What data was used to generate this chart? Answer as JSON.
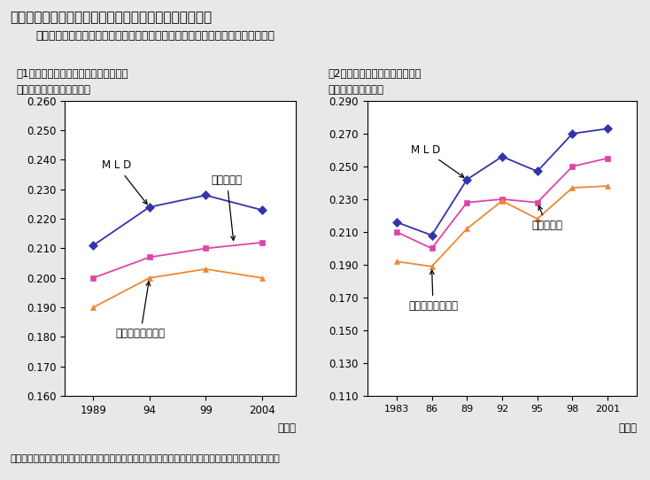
{
  "title": "第３－３－４図　各種指標による所得の各種不平等指数",
  "subtitle": "ジニ係数以外の不平等指数でみても、長期的には所得格差は統計上緩やかに拡大",
  "panel1_title_line1": "（1）「全国消費実態調査」（総世帯）",
  "panel1_title_line2": "　　による各種不平等指数",
  "panel2_title_line1": "（2）「所得再分配調査」による",
  "panel2_title_line2": "　　各種不平等指数",
  "footnote": "（備考）１．　総務省「全国消費実態調査」、厄生労働省「所得再分配調査」を特別集計し推計した。",
  "panel1": {
    "x": [
      1989,
      1994,
      1999,
      2004
    ],
    "xlabel": "（年）",
    "ylim": [
      0.16,
      0.26
    ],
    "yticks": [
      0.16,
      0.17,
      0.18,
      0.19,
      0.2,
      0.21,
      0.22,
      0.23,
      0.24,
      0.25,
      0.26
    ],
    "MLD": [
      0.211,
      0.224,
      0.228,
      0.223
    ],
    "Theil": [
      0.2,
      0.207,
      0.21,
      0.212
    ],
    "Atkinson": [
      0.19,
      0.2,
      0.203,
      0.2
    ],
    "MLD_label": "M L D",
    "Theil_label": "タイル指数",
    "Atkinson_label": "アトキンソン指数",
    "MLD_color": "#3333AA",
    "Theil_color": "#DD44AA",
    "Atkinson_color": "#EE8833"
  },
  "panel2": {
    "x": [
      1983,
      1986,
      1989,
      1992,
      1995,
      1998,
      2001
    ],
    "xlabel": "（年）",
    "ylim": [
      0.11,
      0.29
    ],
    "yticks": [
      0.11,
      0.13,
      0.15,
      0.17,
      0.19,
      0.21,
      0.23,
      0.25,
      0.27,
      0.29
    ],
    "MLD": [
      0.216,
      0.208,
      0.242,
      0.256,
      0.247,
      0.27,
      0.273
    ],
    "Theil": [
      0.21,
      0.2,
      0.228,
      0.23,
      0.228,
      0.25,
      0.255
    ],
    "Atkinson": [
      0.192,
      0.189,
      0.212,
      0.229,
      0.218,
      0.237,
      0.238
    ],
    "MLD_label": "M L D",
    "Theil_label": "タイル指数",
    "Atkinson_label": "アトキンソン指数",
    "MLD_color": "#3333AA",
    "Theil_color": "#DD44AA",
    "Atkinson_color": "#EE8833"
  },
  "bg_color": "#E8E8E8",
  "plot_bg": "#FFFFFF"
}
